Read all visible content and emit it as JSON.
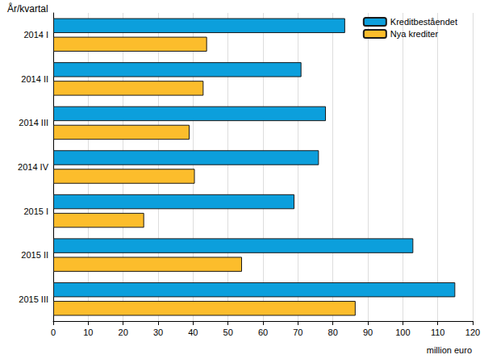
{
  "chart_data": {
    "type": "bar",
    "orientation": "horizontal",
    "y_label": "År/kvartal",
    "x_label": "million euro",
    "categories": [
      "2014 I",
      "2014 II",
      "2014 III",
      "2014 IV",
      "2015 I",
      "2015 II",
      "2015 III"
    ],
    "series": [
      {
        "name": "Kreditbeståendet",
        "color": "#0c9fdc",
        "values": [
          83.5,
          71,
          78,
          76,
          69,
          103,
          115
        ]
      },
      {
        "name": "Nya krediter",
        "color": "#fcbd2c",
        "values": [
          44,
          43,
          39,
          40.5,
          26,
          54,
          86.5
        ]
      }
    ],
    "xlim": [
      0,
      120
    ],
    "xticks": [
      0,
      10,
      20,
      30,
      40,
      50,
      60,
      70,
      80,
      90,
      100,
      110,
      120
    ],
    "grid": true,
    "legend": "top-right"
  }
}
